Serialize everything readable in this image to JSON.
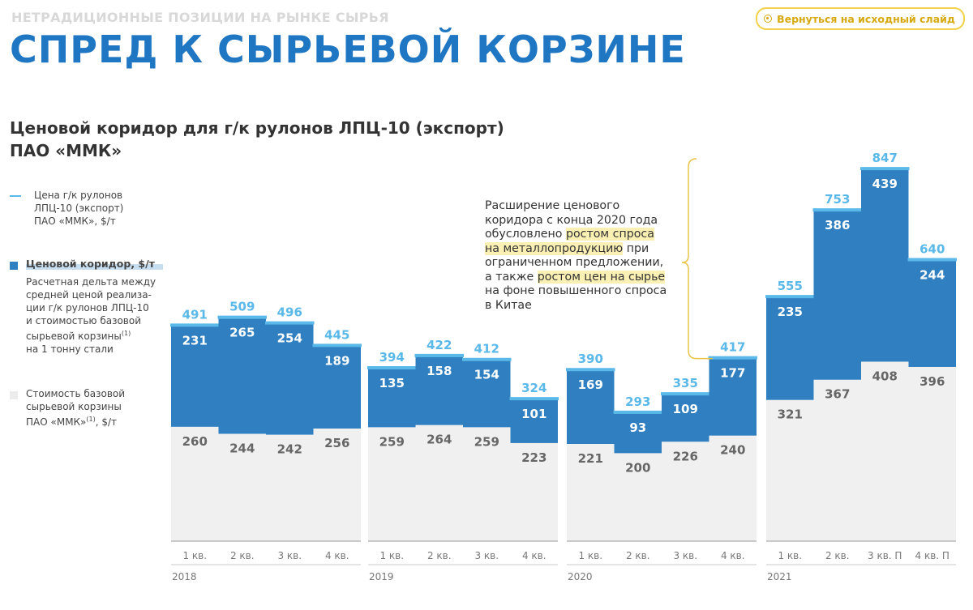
{
  "header": {
    "supertitle": "НЕТРАДИЦИОННЫЕ ПОЗИЦИИ НА РЫНКЕ СЫРЬЯ",
    "title": "СПРЕД К СЫРЬЕВОЙ КОРЗИНЕ",
    "back_button_label": "Вернуться на исходный слайд"
  },
  "subtitle_line1": "Ценовой коридор для г/к рулонов ЛПЦ-10 (экспорт)",
  "subtitle_line2": "ПАО «ММК»",
  "legend": {
    "price_line1": "Цена г/к рулонов",
    "price_line2": "ЛПЦ-10  (экспорт)",
    "price_line3": "ПАО «ММК», $/т",
    "corridor_title": "Ценовой коридор, $/т",
    "corridor_desc1": "Расчетная дельта между",
    "corridor_desc2": "средней ценой реализа-",
    "corridor_desc3": "ции г/к рулонов ЛПЦ-10",
    "corridor_desc4": "и стоимостью базовой",
    "corridor_desc5": "сырьевой корзины",
    "corridor_desc5_sup": "(1)",
    "corridor_desc6": "на 1 тонну стали",
    "basket1": "Стоимость базовой",
    "basket2": "сырьевой корзины",
    "basket3": "ПАО «ММК»",
    "basket3_sup": "(1)",
    "basket3_tail": ", $/т"
  },
  "annotation": {
    "l1": "Расширение ценового",
    "l2": "коридора с конца 2020 года",
    "l3_plain": "обусловлено ",
    "l3_hl": "ростом спроса",
    "l4_hl": "на металлопродукцию",
    "l4_plain": " при",
    "l5": "ограниченном предложении,",
    "l6_plain": "а также ",
    "l6_hl": "ростом цен на сырье",
    "l7": "на фоне повышенного спроса",
    "l8": "в Китае"
  },
  "colors": {
    "corridor": "#2f7fc1",
    "basket": "#f0f0f0",
    "price_line": "#5ab9e8",
    "basket_label": "#666666",
    "bracket": "#e8c547"
  },
  "chart_data": {
    "type": "bar",
    "stacked": true,
    "ylim": [
      0,
      900
    ],
    "years": [
      "2018",
      "2019",
      "2020",
      "2021"
    ],
    "categories": [
      "1 кв.",
      "2 кв.",
      "3 кв.",
      "4 кв.",
      "1 кв.",
      "2 кв.",
      "3 кв.",
      "4 кв.",
      "1 кв.",
      "2 кв.",
      "3 кв.",
      "4 кв.",
      "1 кв.",
      "2 кв.",
      "3 кв. П",
      "4 кв. П"
    ],
    "series": [
      {
        "name": "Стоимость базовой сырьевой корзины ПАО «ММК», $/т",
        "values": [
          260,
          244,
          242,
          256,
          259,
          264,
          259,
          223,
          221,
          200,
          226,
          240,
          321,
          367,
          408,
          396
        ]
      },
      {
        "name": "Ценовой коридор, $/т",
        "values": [
          231,
          265,
          254,
          189,
          135,
          158,
          154,
          101,
          169,
          93,
          109,
          177,
          235,
          386,
          439,
          244
        ]
      }
    ],
    "price": [
      491,
      509,
      496,
      445,
      394,
      422,
      412,
      324,
      390,
      293,
      335,
      417,
      555,
      753,
      847,
      640
    ]
  }
}
